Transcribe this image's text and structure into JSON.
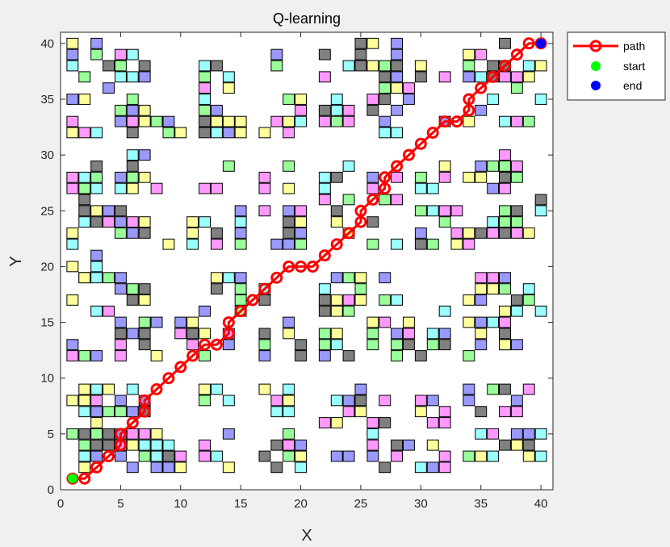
{
  "chart_data": {
    "type": "line",
    "title": "Q-learning",
    "xlabel": "X",
    "ylabel": "Y",
    "xlim": [
      0,
      41
    ],
    "ylim": [
      0,
      41
    ],
    "xticks": [
      0,
      5,
      10,
      15,
      20,
      25,
      30,
      35,
      40
    ],
    "yticks": [
      0,
      5,
      10,
      15,
      20,
      25,
      30,
      35,
      40
    ],
    "grid": false,
    "legend_position": "outside-top-right",
    "legend": [
      "path",
      "start",
      "end"
    ],
    "colors": {
      "path": "#ff0000",
      "start": "#00ff00",
      "end": "#0000ff",
      "obstacle_palette": [
        "#808080",
        "#ff99ff",
        "#9999ff",
        "#99ff99",
        "#99ffff",
        "#ffff99"
      ]
    },
    "start": [
      1,
      1
    ],
    "end": [
      40,
      40
    ],
    "series": [
      {
        "name": "path",
        "x": [
          1,
          2,
          3,
          4,
          5,
          5,
          6,
          7,
          7,
          8,
          9,
          10,
          11,
          12,
          13,
          14,
          14,
          15,
          16,
          17,
          18,
          19,
          20,
          21,
          22,
          23,
          24,
          25,
          25,
          26,
          27,
          27,
          28,
          29,
          30,
          31,
          32,
          33,
          34,
          34,
          35,
          36,
          37,
          38,
          39,
          40
        ],
        "y": [
          1,
          1,
          2,
          3,
          4,
          5,
          6,
          7,
          8,
          9,
          10,
          11,
          12,
          13,
          13,
          14,
          15,
          16,
          17,
          18,
          19,
          20,
          20,
          20,
          21,
          22,
          23,
          24,
          25,
          26,
          27,
          28,
          29,
          30,
          31,
          32,
          33,
          33,
          34,
          35,
          36,
          37,
          38,
          39,
          40,
          40
        ]
      }
    ],
    "obstacle_clusters": [
      [
        1,
        32,
        2
      ],
      [
        1,
        35,
        3
      ],
      [
        1,
        39,
        2
      ],
      [
        5,
        32,
        3
      ],
      [
        5,
        37,
        2
      ],
      [
        9,
        32,
        2
      ],
      [
        12,
        32,
        3
      ],
      [
        12,
        36,
        2
      ],
      [
        17,
        32,
        3
      ],
      [
        17,
        37,
        2
      ],
      [
        22,
        33,
        2
      ],
      [
        22,
        37,
        3
      ],
      [
        26,
        32,
        2
      ],
      [
        26,
        35,
        3
      ],
      [
        26,
        39,
        2
      ],
      [
        30,
        32,
        2
      ],
      [
        30,
        36,
        2
      ],
      [
        34,
        33,
        2
      ],
      [
        34,
        37,
        3
      ],
      [
        37,
        32,
        2
      ],
      [
        37,
        35,
        3
      ],
      [
        1,
        22,
        3
      ],
      [
        1,
        26,
        2
      ],
      [
        1,
        29,
        2
      ],
      [
        5,
        23,
        2
      ],
      [
        5,
        27,
        3
      ],
      [
        9,
        22,
        2
      ],
      [
        12,
        22,
        3
      ],
      [
        12,
        27,
        2
      ],
      [
        17,
        22,
        3
      ],
      [
        17,
        27,
        2
      ],
      [
        22,
        23,
        2
      ],
      [
        22,
        26,
        3
      ],
      [
        26,
        22,
        2
      ],
      [
        26,
        26,
        2
      ],
      [
        30,
        22,
        3
      ],
      [
        30,
        27,
        2
      ],
      [
        34,
        22,
        2
      ],
      [
        34,
        26,
        3
      ],
      [
        37,
        23,
        3
      ],
      [
        37,
        28,
        2
      ],
      [
        1,
        12,
        2
      ],
      [
        1,
        16,
        3
      ],
      [
        1,
        19,
        2
      ],
      [
        5,
        12,
        3
      ],
      [
        5,
        17,
        2
      ],
      [
        9,
        13,
        2
      ],
      [
        12,
        12,
        2
      ],
      [
        12,
        16,
        3
      ],
      [
        17,
        12,
        3
      ],
      [
        17,
        17,
        2
      ],
      [
        22,
        12,
        2
      ],
      [
        22,
        16,
        3
      ],
      [
        26,
        12,
        3
      ],
      [
        26,
        17,
        2
      ],
      [
        30,
        12,
        2
      ],
      [
        30,
        16,
        2
      ],
      [
        34,
        12,
        3
      ],
      [
        34,
        17,
        2
      ],
      [
        37,
        12,
        2
      ],
      [
        37,
        16,
        3
      ],
      [
        1,
        2,
        3
      ],
      [
        1,
        6,
        3
      ],
      [
        5,
        2,
        3
      ],
      [
        5,
        7,
        2
      ],
      [
        9,
        2,
        2
      ],
      [
        12,
        2,
        3
      ],
      [
        12,
        7,
        2
      ],
      [
        17,
        2,
        3
      ],
      [
        17,
        7,
        2
      ],
      [
        22,
        2,
        2
      ],
      [
        22,
        6,
        3
      ],
      [
        26,
        2,
        3
      ],
      [
        26,
        6,
        2
      ],
      [
        30,
        2,
        2
      ],
      [
        30,
        6,
        2
      ],
      [
        34,
        2,
        3
      ],
      [
        34,
        7,
        2
      ],
      [
        37,
        2,
        3
      ],
      [
        37,
        7,
        2
      ]
    ]
  }
}
